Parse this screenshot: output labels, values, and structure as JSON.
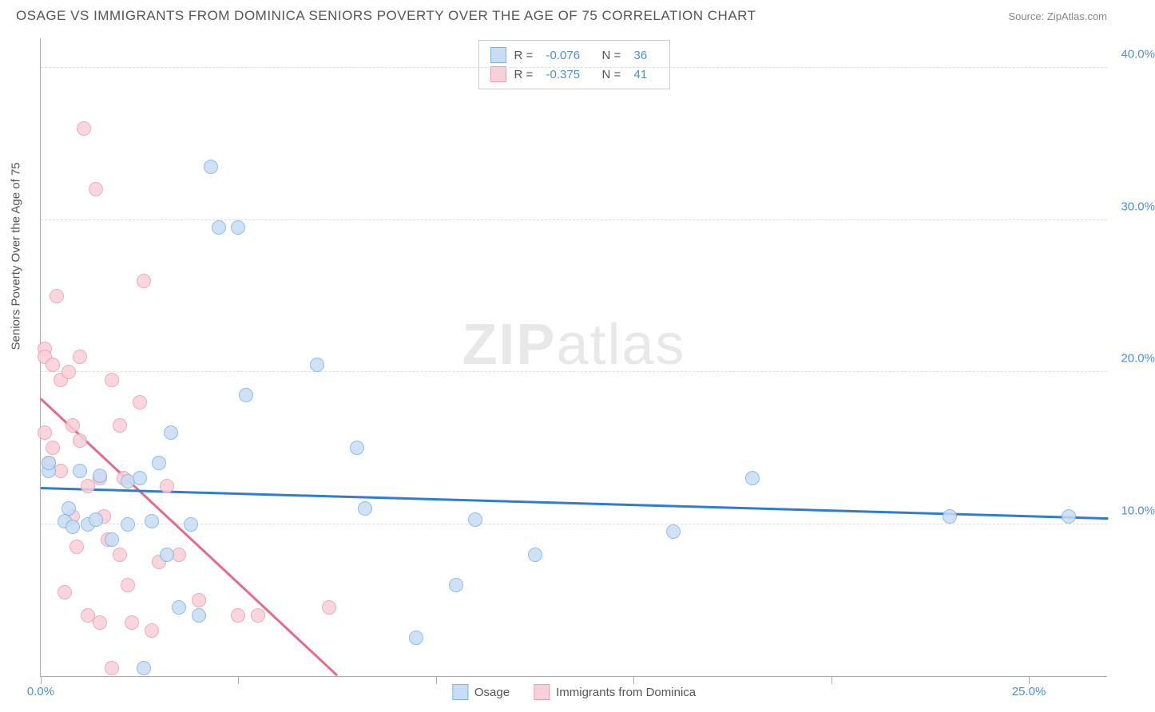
{
  "title": "OSAGE VS IMMIGRANTS FROM DOMINICA SENIORS POVERTY OVER THE AGE OF 75 CORRELATION CHART",
  "source": "Source: ZipAtlas.com",
  "watermark_bold": "ZIP",
  "watermark_light": "atlas",
  "y_axis_label": "Seniors Poverty Over the Age of 75",
  "chart": {
    "type": "scatter",
    "background_color": "#ffffff",
    "grid_color": "#dddddd",
    "xlim": [
      0,
      27
    ],
    "ylim": [
      0,
      42
    ],
    "x_ticks": [
      0,
      5,
      10,
      15,
      20,
      25
    ],
    "x_tick_labels": [
      "0.0%",
      "",
      "",
      "",
      "",
      "25.0%"
    ],
    "y_ticks": [
      10,
      20,
      30,
      40
    ],
    "y_tick_labels": [
      "10.0%",
      "20.0%",
      "30.0%",
      "40.0%"
    ],
    "marker_radius": 9
  },
  "series": {
    "osage": {
      "label": "Osage",
      "fill": "#c7ddf4",
      "stroke": "#7fb1e8",
      "R": "-0.076",
      "N": "36",
      "trend": {
        "x1": 0,
        "y1": 12.3,
        "x2": 27,
        "y2": 10.3,
        "color": "#2e7cd6",
        "width": 2.5
      },
      "points": [
        [
          0.2,
          13.5
        ],
        [
          0.2,
          14.0
        ],
        [
          0.6,
          10.2
        ],
        [
          0.7,
          11.0
        ],
        [
          0.8,
          9.8
        ],
        [
          1.0,
          13.5
        ],
        [
          1.2,
          10.0
        ],
        [
          1.4,
          10.3
        ],
        [
          1.5,
          13.2
        ],
        [
          1.8,
          9.0
        ],
        [
          2.2,
          12.8
        ],
        [
          2.2,
          10.0
        ],
        [
          2.5,
          13.0
        ],
        [
          2.6,
          0.5
        ],
        [
          2.8,
          10.2
        ],
        [
          3.0,
          14.0
        ],
        [
          3.2,
          8.0
        ],
        [
          3.3,
          16.0
        ],
        [
          3.5,
          4.5
        ],
        [
          3.8,
          10.0
        ],
        [
          4.0,
          4.0
        ],
        [
          4.5,
          29.5
        ],
        [
          5.0,
          29.5
        ],
        [
          5.2,
          18.5
        ],
        [
          4.3,
          33.5
        ],
        [
          7.0,
          20.5
        ],
        [
          8.0,
          15.0
        ],
        [
          8.2,
          11.0
        ],
        [
          9.5,
          2.5
        ],
        [
          10.5,
          6.0
        ],
        [
          11.0,
          10.3
        ],
        [
          12.5,
          8.0
        ],
        [
          16.0,
          9.5
        ],
        [
          18.0,
          13.0
        ],
        [
          23.0,
          10.5
        ],
        [
          26.0,
          10.5
        ]
      ]
    },
    "dominica": {
      "label": "Immigrants from Dominica",
      "fill": "#f8d0d8",
      "stroke": "#ea9db0",
      "R": "-0.375",
      "N": "41",
      "trend": {
        "x1": 0,
        "y1": 18.2,
        "x2": 7.5,
        "y2": 0,
        "color": "#e86a8a",
        "width": 2.5
      },
      "points": [
        [
          0.1,
          16.0
        ],
        [
          0.1,
          21.5
        ],
        [
          0.1,
          21.0
        ],
        [
          0.2,
          14.0
        ],
        [
          0.3,
          15.0
        ],
        [
          0.3,
          20.5
        ],
        [
          0.4,
          25.0
        ],
        [
          0.5,
          19.5
        ],
        [
          0.5,
          13.5
        ],
        [
          0.6,
          5.5
        ],
        [
          0.7,
          20.0
        ],
        [
          0.8,
          16.5
        ],
        [
          0.8,
          10.5
        ],
        [
          0.9,
          8.5
        ],
        [
          1.0,
          15.5
        ],
        [
          1.0,
          21.0
        ],
        [
          1.1,
          36.0
        ],
        [
          1.2,
          12.5
        ],
        [
          1.2,
          4.0
        ],
        [
          1.4,
          32.0
        ],
        [
          1.5,
          13.0
        ],
        [
          1.5,
          3.5
        ],
        [
          1.6,
          10.5
        ],
        [
          1.7,
          9.0
        ],
        [
          1.8,
          19.5
        ],
        [
          1.8,
          0.5
        ],
        [
          2.0,
          16.5
        ],
        [
          2.0,
          8.0
        ],
        [
          2.1,
          13.0
        ],
        [
          2.2,
          6.0
        ],
        [
          2.3,
          3.5
        ],
        [
          2.5,
          18.0
        ],
        [
          2.6,
          26.0
        ],
        [
          2.8,
          3.0
        ],
        [
          3.0,
          7.5
        ],
        [
          3.2,
          12.5
        ],
        [
          3.5,
          8.0
        ],
        [
          4.0,
          5.0
        ],
        [
          5.0,
          4.0
        ],
        [
          5.5,
          4.0
        ],
        [
          7.3,
          4.5
        ]
      ]
    }
  },
  "legend_stats_labels": {
    "R": "R =",
    "N": "N ="
  }
}
